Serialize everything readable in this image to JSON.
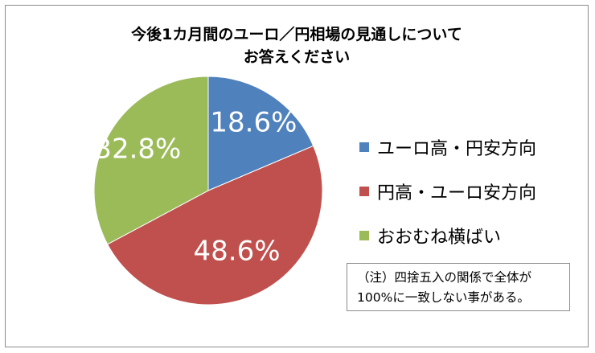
{
  "chart_data": {
    "type": "pie",
    "title": [
      "今後1カ月間のユーロ／円相場の見通しについて",
      "お答えください"
    ],
    "slices": [
      {
        "name": "ユーロ高・円安方向",
        "value": 18.6,
        "label": "18.6%",
        "color": "#4f81bd"
      },
      {
        "name": "円高・ユーロ安方向",
        "value": 48.6,
        "label": "48.6%",
        "color": "#c0504d"
      },
      {
        "name": "おおむね横ばい",
        "value": 32.8,
        "label": "32.8%",
        "color": "#9bbb59"
      }
    ],
    "legend_position": "right",
    "note": [
      "（注）四捨五入の関係で全体が",
      "100%に一致しない事がある。"
    ]
  }
}
